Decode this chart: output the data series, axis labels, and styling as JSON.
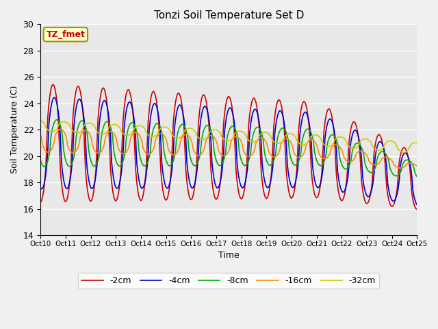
{
  "title": "Tonzi Soil Temperature Set D",
  "xlabel": "Time",
  "ylabel": "Soil Temperature (C)",
  "ylim": [
    14,
    30
  ],
  "background_color": "#e8e8e8",
  "figure_color": "#f0f0f0",
  "annotation_text": "TZ_fmet",
  "annotation_bg": "#ffffcc",
  "annotation_edge": "#999900",
  "annotation_text_color": "#cc0000",
  "series": [
    {
      "label": "-2cm",
      "color": "#cc0000",
      "linewidth": 1.2
    },
    {
      "label": "-4cm",
      "color": "#0000cc",
      "linewidth": 1.2
    },
    {
      "label": "-8cm",
      "color": "#00aa00",
      "linewidth": 1.2
    },
    {
      "label": "-16cm",
      "color": "#ff8800",
      "linewidth": 1.2
    },
    {
      "label": "-32cm",
      "color": "#cccc00",
      "linewidth": 1.2
    }
  ],
  "xtick_labels": [
    "Oct 10",
    "Oct 11",
    "Oct 12",
    "Oct 13",
    "Oct 14",
    "Oct 15",
    "Oct 16",
    "Oct 17",
    "Oct 18",
    "Oct 19",
    "Oct 20",
    "Oct 21",
    "Oct 22",
    "Oct 23",
    "Oct 24",
    "Oct 25"
  ],
  "grid_color": "#ffffff",
  "legend_loc": "lower center"
}
